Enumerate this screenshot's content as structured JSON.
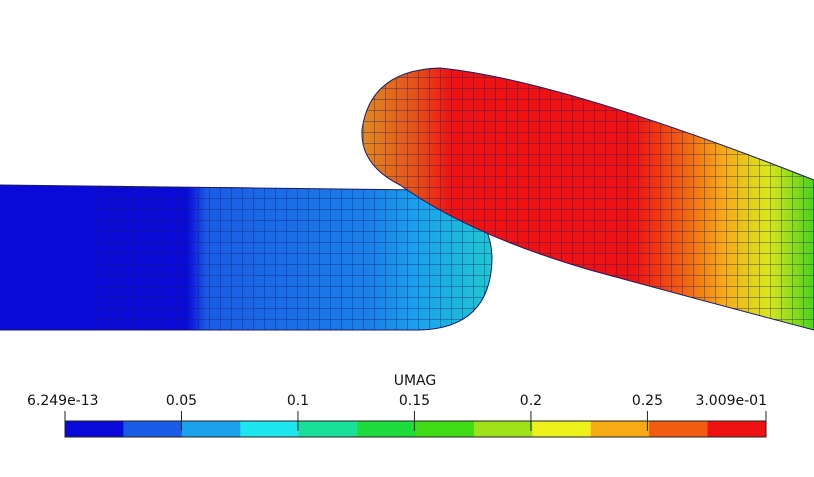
{
  "colorbar": {
    "title": "UMAG",
    "lim": [
      6.249e-13,
      0.3009
    ],
    "ticks": [
      {
        "value": 6.249e-13,
        "label": "6.249e-13"
      },
      0.05,
      0.1,
      0.15,
      0.2,
      0.25,
      {
        "value": 0.3009,
        "label": "3.009e-01"
      }
    ],
    "colors": [
      "#0a0ad8",
      "#1a5ce6",
      "#1aa2ec",
      "#1ee6ee",
      "#18e09a",
      "#1ddc3c",
      "#3fdc16",
      "#a0e21a",
      "#eef01c",
      "#f6aa16",
      "#f25c12",
      "#ee1212"
    ]
  }
}
